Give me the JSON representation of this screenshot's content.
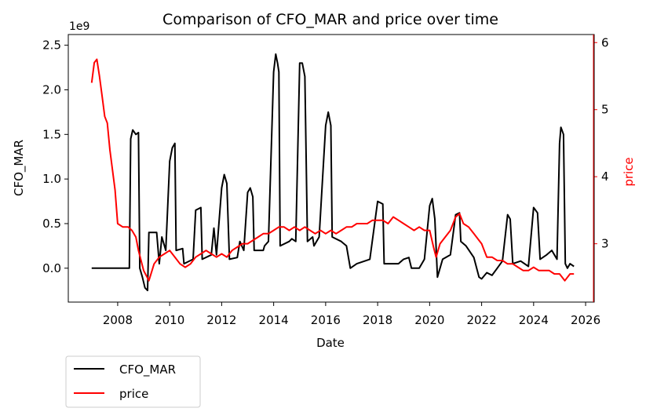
{
  "chart_data": {
    "type": "line",
    "title": "Comparison of CFO_MAR and price over time",
    "xlabel": "Date",
    "ylabel_left": "CFO_MAR",
    "ylabel_right": "price",
    "left_axis_offset_text": "1e9",
    "x_tick_labels": [
      "2008",
      "2010",
      "2012",
      "2014",
      "2016",
      "2018",
      "2020",
      "2022",
      "2024",
      "2026"
    ],
    "xlim": [
      2006.1,
      2026.3
    ],
    "ylim_left": [
      -0.38,
      2.62
    ],
    "ylim_right": [
      2.13,
      6.12
    ],
    "left_ticks": [
      -0.0,
      0.5,
      1.0,
      1.5,
      2.0,
      2.5
    ],
    "left_tick_labels": [
      "0.0",
      "0.5",
      "1.0",
      "1.5",
      "2.0",
      "2.5"
    ],
    "right_ticks": [
      3,
      4,
      5,
      6
    ],
    "right_tick_labels": [
      "3",
      "4",
      "5",
      "6"
    ],
    "legend_placement": "below-left",
    "grid": false,
    "series": [
      {
        "name": "CFO_MAR",
        "axis": "left",
        "color": "#000000",
        "points": [
          [
            2007.0,
            0.0
          ],
          [
            2008.45,
            0.0
          ],
          [
            2008.5,
            1.45
          ],
          [
            2008.58,
            1.55
          ],
          [
            2008.7,
            1.5
          ],
          [
            2008.8,
            1.52
          ],
          [
            2008.85,
            0.0
          ],
          [
            2008.95,
            -0.1
          ],
          [
            2009.05,
            -0.22
          ],
          [
            2009.15,
            -0.25
          ],
          [
            2009.2,
            0.4
          ],
          [
            2009.5,
            0.4
          ],
          [
            2009.6,
            0.05
          ],
          [
            2009.7,
            0.35
          ],
          [
            2009.85,
            0.2
          ],
          [
            2010.0,
            1.2
          ],
          [
            2010.1,
            1.35
          ],
          [
            2010.2,
            1.4
          ],
          [
            2010.25,
            0.2
          ],
          [
            2010.5,
            0.22
          ],
          [
            2010.55,
            0.05
          ],
          [
            2010.9,
            0.1
          ],
          [
            2011.0,
            0.65
          ],
          [
            2011.2,
            0.68
          ],
          [
            2011.25,
            0.1
          ],
          [
            2011.6,
            0.15
          ],
          [
            2011.7,
            0.45
          ],
          [
            2011.8,
            0.15
          ],
          [
            2012.0,
            0.9
          ],
          [
            2012.1,
            1.05
          ],
          [
            2012.2,
            0.95
          ],
          [
            2012.3,
            0.1
          ],
          [
            2012.6,
            0.12
          ],
          [
            2012.7,
            0.3
          ],
          [
            2012.85,
            0.2
          ],
          [
            2013.0,
            0.85
          ],
          [
            2013.1,
            0.9
          ],
          [
            2013.2,
            0.8
          ],
          [
            2013.25,
            0.2
          ],
          [
            2013.6,
            0.2
          ],
          [
            2013.65,
            0.25
          ],
          [
            2013.8,
            0.3
          ],
          [
            2014.0,
            2.2
          ],
          [
            2014.08,
            2.4
          ],
          [
            2014.15,
            2.3
          ],
          [
            2014.2,
            2.2
          ],
          [
            2014.25,
            0.25
          ],
          [
            2014.6,
            0.3
          ],
          [
            2014.7,
            0.33
          ],
          [
            2014.85,
            0.3
          ],
          [
            2015.0,
            2.3
          ],
          [
            2015.1,
            2.3
          ],
          [
            2015.2,
            2.15
          ],
          [
            2015.3,
            0.3
          ],
          [
            2015.5,
            0.35
          ],
          [
            2015.55,
            0.25
          ],
          [
            2015.75,
            0.35
          ],
          [
            2016.0,
            1.6
          ],
          [
            2016.1,
            1.75
          ],
          [
            2016.2,
            1.6
          ],
          [
            2016.25,
            0.35
          ],
          [
            2016.6,
            0.3
          ],
          [
            2016.8,
            0.25
          ],
          [
            2016.95,
            0.0
          ],
          [
            2017.2,
            0.05
          ],
          [
            2017.5,
            0.08
          ],
          [
            2017.7,
            0.1
          ],
          [
            2018.0,
            0.75
          ],
          [
            2018.2,
            0.72
          ],
          [
            2018.25,
            0.05
          ],
          [
            2018.8,
            0.05
          ],
          [
            2019.0,
            0.1
          ],
          [
            2019.2,
            0.12
          ],
          [
            2019.3,
            0.0
          ],
          [
            2019.6,
            0.0
          ],
          [
            2019.8,
            0.1
          ],
          [
            2020.0,
            0.7
          ],
          [
            2020.1,
            0.78
          ],
          [
            2020.2,
            0.55
          ],
          [
            2020.3,
            -0.1
          ],
          [
            2020.5,
            0.1
          ],
          [
            2020.8,
            0.15
          ],
          [
            2021.0,
            0.6
          ],
          [
            2021.15,
            0.62
          ],
          [
            2021.2,
            0.3
          ],
          [
            2021.4,
            0.25
          ],
          [
            2021.7,
            0.12
          ],
          [
            2021.9,
            -0.1
          ],
          [
            2022.0,
            -0.12
          ],
          [
            2022.2,
            -0.05
          ],
          [
            2022.4,
            -0.08
          ],
          [
            2022.6,
            0.0
          ],
          [
            2022.8,
            0.08
          ],
          [
            2023.0,
            0.6
          ],
          [
            2023.1,
            0.55
          ],
          [
            2023.2,
            0.05
          ],
          [
            2023.5,
            0.08
          ],
          [
            2023.8,
            0.02
          ],
          [
            2024.0,
            0.68
          ],
          [
            2024.15,
            0.62
          ],
          [
            2024.25,
            0.1
          ],
          [
            2024.5,
            0.15
          ],
          [
            2024.7,
            0.2
          ],
          [
            2024.9,
            0.1
          ],
          [
            2025.0,
            1.4
          ],
          [
            2025.05,
            1.58
          ],
          [
            2025.15,
            1.5
          ],
          [
            2025.22,
            0.05
          ],
          [
            2025.3,
            0.0
          ],
          [
            2025.4,
            0.05
          ],
          [
            2025.55,
            0.02
          ]
        ]
      },
      {
        "name": "price",
        "axis": "right",
        "color": "#ff0000",
        "points": [
          [
            2007.0,
            5.4
          ],
          [
            2007.1,
            5.7
          ],
          [
            2007.2,
            5.75
          ],
          [
            2007.3,
            5.5
          ],
          [
            2007.4,
            5.2
          ],
          [
            2007.5,
            4.9
          ],
          [
            2007.6,
            4.8
          ],
          [
            2007.7,
            4.4
          ],
          [
            2007.8,
            4.1
          ],
          [
            2007.9,
            3.8
          ],
          [
            2008.0,
            3.3
          ],
          [
            2008.2,
            3.25
          ],
          [
            2008.4,
            3.25
          ],
          [
            2008.55,
            3.2
          ],
          [
            2008.7,
            3.1
          ],
          [
            2008.8,
            2.9
          ],
          [
            2009.0,
            2.6
          ],
          [
            2009.2,
            2.45
          ],
          [
            2009.4,
            2.7
          ],
          [
            2009.6,
            2.8
          ],
          [
            2009.8,
            2.85
          ],
          [
            2010.0,
            2.9
          ],
          [
            2010.2,
            2.8
          ],
          [
            2010.4,
            2.7
          ],
          [
            2010.6,
            2.65
          ],
          [
            2010.8,
            2.7
          ],
          [
            2011.0,
            2.8
          ],
          [
            2011.2,
            2.85
          ],
          [
            2011.4,
            2.9
          ],
          [
            2011.6,
            2.85
          ],
          [
            2011.8,
            2.8
          ],
          [
            2012.0,
            2.85
          ],
          [
            2012.2,
            2.8
          ],
          [
            2012.4,
            2.9
          ],
          [
            2012.6,
            2.95
          ],
          [
            2012.8,
            3.0
          ],
          [
            2013.0,
            3.0
          ],
          [
            2013.2,
            3.05
          ],
          [
            2013.4,
            3.1
          ],
          [
            2013.6,
            3.15
          ],
          [
            2013.8,
            3.15
          ],
          [
            2014.0,
            3.2
          ],
          [
            2014.2,
            3.25
          ],
          [
            2014.4,
            3.25
          ],
          [
            2014.6,
            3.2
          ],
          [
            2014.8,
            3.25
          ],
          [
            2015.0,
            3.2
          ],
          [
            2015.2,
            3.25
          ],
          [
            2015.4,
            3.2
          ],
          [
            2015.6,
            3.15
          ],
          [
            2015.8,
            3.2
          ],
          [
            2016.0,
            3.15
          ],
          [
            2016.2,
            3.2
          ],
          [
            2016.4,
            3.15
          ],
          [
            2016.6,
            3.2
          ],
          [
            2016.8,
            3.25
          ],
          [
            2017.0,
            3.25
          ],
          [
            2017.2,
            3.3
          ],
          [
            2017.4,
            3.3
          ],
          [
            2017.6,
            3.3
          ],
          [
            2017.8,
            3.35
          ],
          [
            2018.0,
            3.35
          ],
          [
            2018.2,
            3.35
          ],
          [
            2018.4,
            3.3
          ],
          [
            2018.6,
            3.4
          ],
          [
            2018.8,
            3.35
          ],
          [
            2019.0,
            3.3
          ],
          [
            2019.2,
            3.25
          ],
          [
            2019.4,
            3.2
          ],
          [
            2019.6,
            3.25
          ],
          [
            2019.8,
            3.2
          ],
          [
            2020.0,
            3.2
          ],
          [
            2020.15,
            2.95
          ],
          [
            2020.25,
            2.8
          ],
          [
            2020.4,
            3.0
          ],
          [
            2020.6,
            3.1
          ],
          [
            2020.8,
            3.2
          ],
          [
            2021.0,
            3.4
          ],
          [
            2021.15,
            3.45
          ],
          [
            2021.3,
            3.3
          ],
          [
            2021.5,
            3.25
          ],
          [
            2021.7,
            3.15
          ],
          [
            2021.9,
            3.05
          ],
          [
            2022.0,
            3.0
          ],
          [
            2022.2,
            2.8
          ],
          [
            2022.4,
            2.8
          ],
          [
            2022.6,
            2.75
          ],
          [
            2022.8,
            2.75
          ],
          [
            2023.0,
            2.7
          ],
          [
            2023.2,
            2.7
          ],
          [
            2023.4,
            2.65
          ],
          [
            2023.6,
            2.6
          ],
          [
            2023.8,
            2.6
          ],
          [
            2024.0,
            2.65
          ],
          [
            2024.2,
            2.6
          ],
          [
            2024.4,
            2.6
          ],
          [
            2024.6,
            2.6
          ],
          [
            2024.8,
            2.55
          ],
          [
            2025.0,
            2.55
          ],
          [
            2025.2,
            2.45
          ],
          [
            2025.4,
            2.55
          ],
          [
            2025.55,
            2.55
          ]
        ]
      }
    ]
  }
}
